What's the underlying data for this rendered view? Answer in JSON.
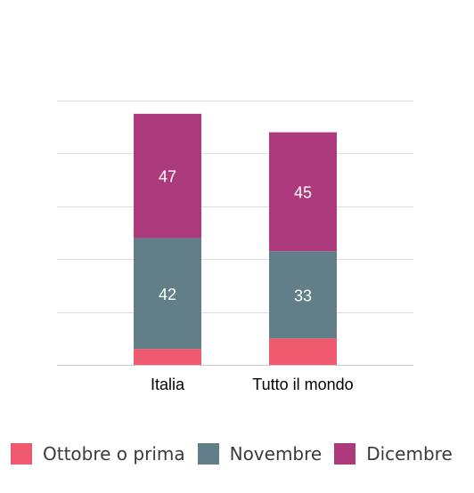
{
  "chart_data": {
    "type": "bar",
    "stacked": true,
    "categories": [
      "Italia",
      "Tutto il mondo"
    ],
    "series": [
      {
        "name": "Ottobre o prima",
        "values": [
          6,
          10
        ],
        "color": "#f05a6e",
        "show_label": false
      },
      {
        "name": "Novembre",
        "values": [
          42,
          33
        ],
        "color": "#627e89",
        "show_label": true
      },
      {
        "name": "Dicembre",
        "values": [
          47,
          45
        ],
        "color": "#ad3a7c",
        "show_label": true
      }
    ],
    "ylim": [
      0,
      100
    ],
    "grid": true,
    "legend_position": "bottom",
    "label_color": "#ffffff",
    "grid_color": "#dddddd"
  }
}
